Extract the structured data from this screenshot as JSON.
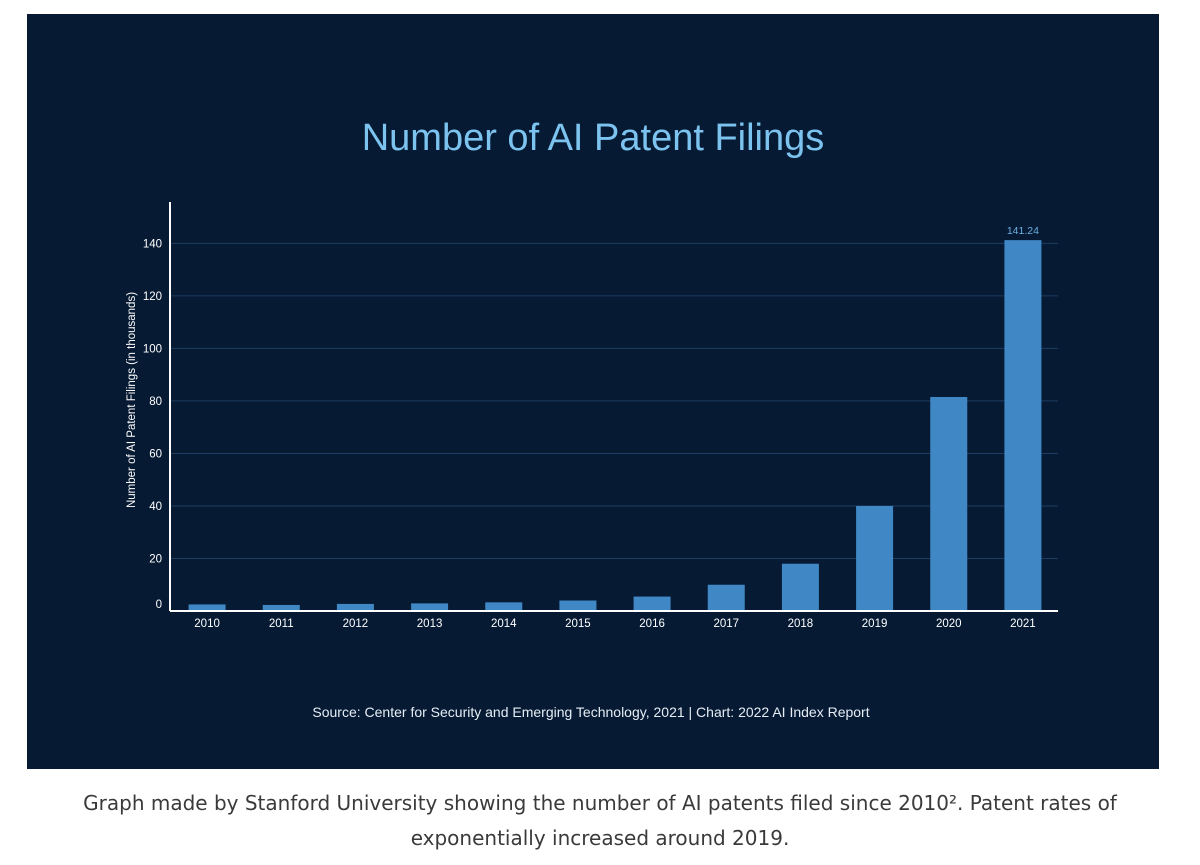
{
  "chart_data": {
    "type": "bar",
    "title": "Number of AI Patent Filings",
    "xlabel": "",
    "ylabel": "Number of AI Patent Filings (in thousands)",
    "categories": [
      "2010",
      "2011",
      "2012",
      "2013",
      "2014",
      "2015",
      "2016",
      "2017",
      "2018",
      "2019",
      "2020",
      "2021"
    ],
    "values": [
      2.5,
      2.3,
      2.7,
      2.9,
      3.3,
      4.0,
      5.5,
      10.0,
      18.0,
      40.0,
      81.5,
      141.24
    ],
    "value_labels": [
      "",
      "",
      "",
      "",
      "",
      "",
      "",
      "",
      "",
      "",
      "",
      "141.24"
    ],
    "yticks": [
      0,
      20,
      40,
      60,
      80,
      100,
      120,
      140
    ],
    "ylim": [
      0,
      155
    ],
    "grid": true,
    "colors": {
      "bar": "#3f88c5",
      "background": "#061a33",
      "title": "#7cc4ef",
      "grid": "#1d3d63",
      "axis": "#ffffff",
      "text": "#ffffff",
      "value_label": "#6fb0e6"
    },
    "source": "Source: Center for Security and Emerging Technology, 2021 | Chart: 2022 AI Index Report"
  },
  "caption": {
    "line1": "Graph made by Stanford University showing the number of AI patents filed since 2010². Patent rates of",
    "line2": "exponentially increased around 2019."
  }
}
